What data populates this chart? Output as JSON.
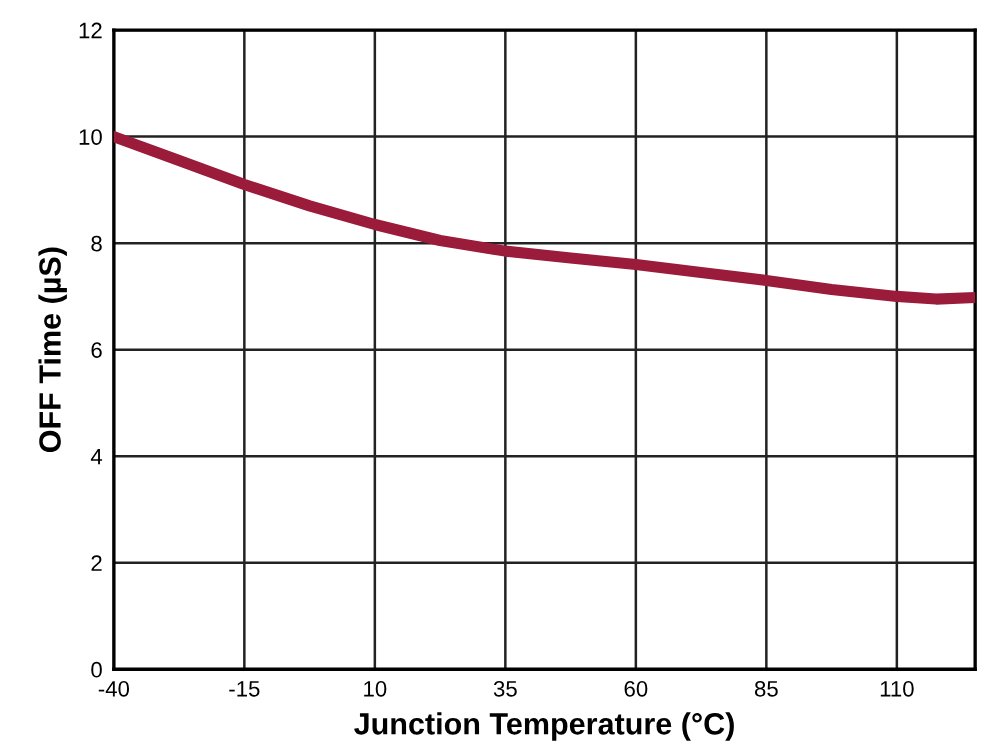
{
  "chart_data": {
    "type": "line",
    "xlabel": "Junction Temperature (°C)",
    "ylabel": "OFF Time (µS)",
    "x": [
      -40,
      -27.5,
      -15,
      -2.5,
      10,
      22.5,
      35,
      47.5,
      60,
      72.5,
      85,
      97.5,
      110,
      117.5,
      125
    ],
    "series": [
      {
        "color": "#9b1b3a",
        "values": [
          10.0,
          9.55,
          9.1,
          8.7,
          8.35,
          8.05,
          7.85,
          7.72,
          7.6,
          7.45,
          7.3,
          7.13,
          7.0,
          6.95,
          6.98
        ]
      }
    ],
    "xlim": [
      -40,
      125
    ],
    "xticks": [
      -40,
      -15,
      10,
      35,
      60,
      85,
      110
    ],
    "ylim": [
      0,
      12
    ],
    "yticks": [
      0,
      2,
      4,
      6,
      8,
      10,
      12
    ],
    "grid": true,
    "marker": "none",
    "line_style": "solid",
    "legend": false
  }
}
